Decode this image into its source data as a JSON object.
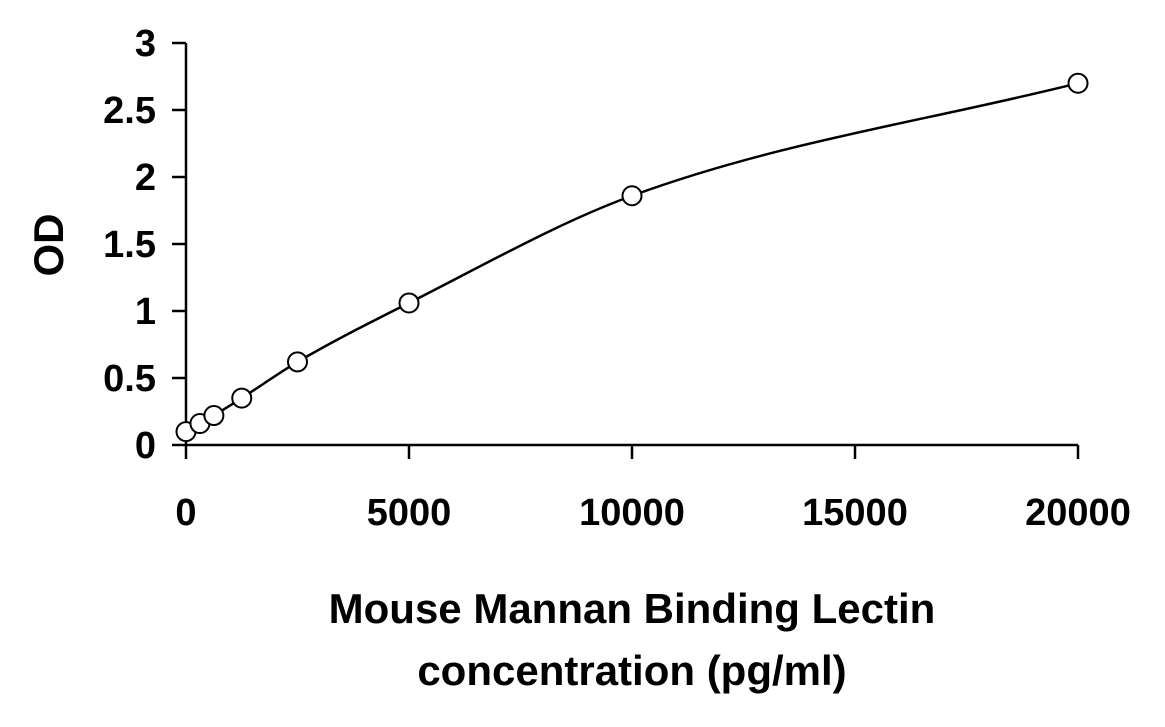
{
  "chart_data": {
    "type": "scatter",
    "xlabel_lines": [
      "Mouse Mannan Binding Lectin",
      "concentration (pg/ml)"
    ],
    "ylabel": "OD",
    "xlim": [
      0,
      20000
    ],
    "ylim": [
      0,
      3
    ],
    "x_ticks": [
      0,
      5000,
      10000,
      15000,
      20000
    ],
    "x_tick_labels": [
      "0",
      "5000",
      "10000",
      "15000",
      "20000"
    ],
    "y_ticks": [
      0,
      0.5,
      1,
      1.5,
      2,
      2.5,
      3
    ],
    "y_tick_labels": [
      "0",
      "0.5",
      "1",
      "1.5",
      "2",
      "2.5",
      "3"
    ],
    "grid": false,
    "series": [
      {
        "points": [
          {
            "x": 0,
            "y": 0.1
          },
          {
            "x": 312.5,
            "y": 0.16
          },
          {
            "x": 625,
            "y": 0.22
          },
          {
            "x": 1250,
            "y": 0.35
          },
          {
            "x": 2500,
            "y": 0.62
          },
          {
            "x": 5000,
            "y": 1.06
          },
          {
            "x": 10000,
            "y": 1.86
          },
          {
            "x": 20000,
            "y": 2.7
          }
        ],
        "marker": "open-circle",
        "fit_line": "smooth"
      }
    ]
  }
}
